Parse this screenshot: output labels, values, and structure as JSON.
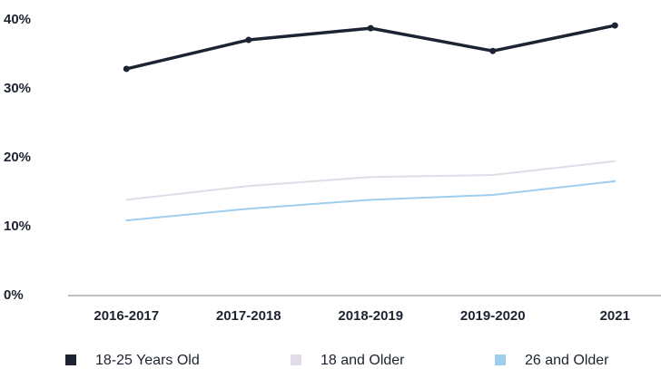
{
  "chart_data": {
    "type": "line",
    "categories": [
      "2016-2017",
      "2017-2018",
      "2018-2019",
      "2019-2020",
      "2021"
    ],
    "series": [
      {
        "name": "18-25 Years Old",
        "color": "#1c2433",
        "values": [
          32.9,
          37.1,
          38.8,
          35.5,
          39.2
        ]
      },
      {
        "name": "18 and Older",
        "color": "#e3dce8",
        "values": [
          13.9,
          15.9,
          17.2,
          17.5,
          19.5
        ]
      },
      {
        "name": "26 and Older",
        "color": "#9fcdee",
        "values": [
          10.9,
          12.6,
          13.9,
          14.6,
          16.6
        ]
      }
    ],
    "ylim": [
      0,
      40
    ],
    "yticks": [
      {
        "value": 0,
        "label": "0%"
      },
      {
        "value": 10,
        "label": "10%"
      },
      {
        "value": 20,
        "label": "20%"
      },
      {
        "value": 30,
        "label": "30%"
      },
      {
        "value": 40,
        "label": "40%"
      }
    ],
    "grid": false,
    "legend": "bottom"
  }
}
